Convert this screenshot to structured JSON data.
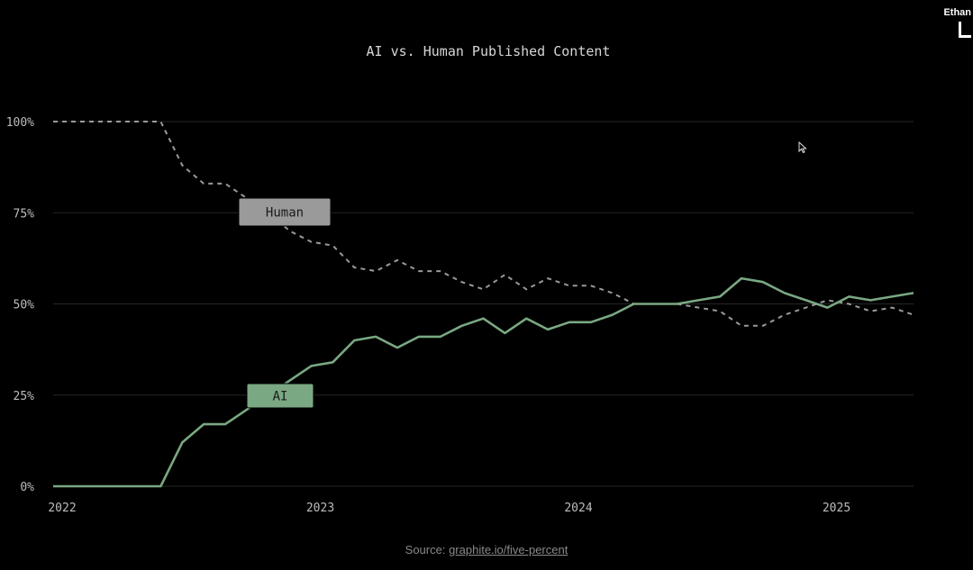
{
  "chart_data": {
    "type": "line",
    "title": "AI vs. Human Published Content",
    "x": [
      "2022-01",
      "2022-02",
      "2022-03",
      "2022-04",
      "2022-05",
      "2022-06",
      "2022-07",
      "2022-08",
      "2022-09",
      "2022-10",
      "2022-11",
      "2022-12",
      "2023-01",
      "2023-02",
      "2023-03",
      "2023-04",
      "2023-05",
      "2023-06",
      "2023-07",
      "2023-08",
      "2023-09",
      "2023-10",
      "2023-11",
      "2023-12",
      "2024-01",
      "2024-02",
      "2024-03",
      "2024-04",
      "2024-05",
      "2024-06",
      "2024-07",
      "2024-08",
      "2024-09",
      "2024-10",
      "2024-11",
      "2024-12",
      "2025-01",
      "2025-02",
      "2025-03",
      "2025-04",
      "2025-05"
    ],
    "series": [
      {
        "name": "Human",
        "style": "dashed",
        "color": "#9a9a9a",
        "values": [
          100,
          100,
          100,
          100,
          100,
          100,
          88,
          83,
          83,
          79,
          75,
          70,
          67,
          66,
          60,
          59,
          62,
          59,
          59,
          56,
          54,
          58,
          54,
          57,
          55,
          55,
          53,
          50,
          50,
          50,
          49,
          48,
          44,
          44,
          47,
          49,
          51,
          50,
          48,
          49,
          47
        ]
      },
      {
        "name": "AI",
        "style": "solid",
        "color": "#7aa882",
        "values": [
          0,
          0,
          0,
          0,
          0,
          0,
          12,
          17,
          17,
          21,
          25,
          29,
          33,
          34,
          40,
          41,
          38,
          41,
          41,
          44,
          46,
          42,
          46,
          43,
          45,
          45,
          47,
          50,
          50,
          50,
          51,
          52,
          57,
          56,
          53,
          51,
          49,
          52,
          51,
          52,
          53
        ]
      }
    ],
    "xtick_labels": [
      "2022",
      "2023",
      "2024",
      "2025"
    ],
    "ytick_labels": [
      "100%",
      "75%",
      "50%",
      "25%",
      "0%"
    ],
    "ytick_values": [
      100,
      75,
      50,
      25,
      0
    ],
    "ylim": [
      0,
      100
    ],
    "grid": true,
    "legend": "inline labels"
  },
  "source": {
    "prefix": "Source: ",
    "link": "graphite.io/five-percent"
  },
  "brand": {
    "name": "Ethan"
  }
}
